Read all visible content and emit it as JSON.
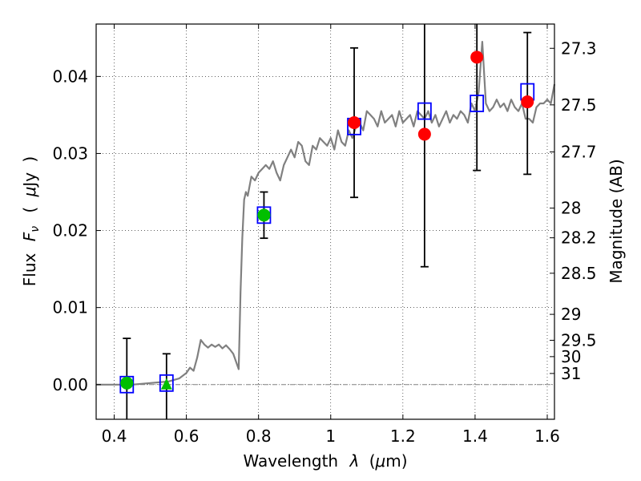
{
  "chart_data": {
    "type": "scatter",
    "xlabel_parts": [
      "Wavelength",
      "λ",
      "(",
      "μ",
      "m)"
    ],
    "ylabel_parts": [
      "Flux",
      "F",
      "ν",
      "(",
      "μ",
      "Jy",
      ")"
    ],
    "y2label": "Magnitude (AB)",
    "xlim": [
      0.35,
      1.62
    ],
    "ylim": [
      -0.0045,
      0.0468
    ],
    "xticks": [
      0.4,
      0.6,
      0.8,
      1.0,
      1.2,
      1.4,
      1.6
    ],
    "xtick_labels": [
      "0.4",
      "0.6",
      "0.8",
      "1",
      "1.2",
      "1.4",
      "1.6"
    ],
    "yticks": [
      0.0,
      0.01,
      0.02,
      0.03,
      0.04
    ],
    "ytick_labels": [
      "0.00",
      "0.01",
      "0.02",
      "0.03",
      "0.04"
    ],
    "magnitude_ticks": [
      {
        "mag": 27.3,
        "label": "27.3"
      },
      {
        "mag": 27.5,
        "label": "27.5"
      },
      {
        "mag": 27.7,
        "label": "27.7"
      },
      {
        "mag": 28,
        "label": "28"
      },
      {
        "mag": 28.2,
        "label": "28.2"
      },
      {
        "mag": 28.5,
        "label": "28.5"
      },
      {
        "mag": 29,
        "label": "29"
      },
      {
        "mag": 29.5,
        "label": "29.5"
      },
      {
        "mag": 30,
        "label": "30"
      },
      {
        "mag": 31,
        "label": "31"
      }
    ],
    "grid": true,
    "colors": {
      "spectrum": "#808080",
      "green": "#00bf00",
      "red": "#ff0000",
      "model_box": "#0000ff",
      "errorbar": "#000000",
      "zero_line": "#808080"
    },
    "series": [
      {
        "kind": "line",
        "x": [
          0.35,
          0.4,
          0.45,
          0.5,
          0.55,
          0.58,
          0.6,
          0.61,
          0.62,
          0.63,
          0.64,
          0.65,
          0.66,
          0.67,
          0.68,
          0.69,
          0.7,
          0.71,
          0.72,
          0.73,
          0.745,
          0.75,
          0.755,
          0.76,
          0.765,
          0.77,
          0.78,
          0.79,
          0.8,
          0.81,
          0.82,
          0.83,
          0.84,
          0.85,
          0.86,
          0.87,
          0.88,
          0.89,
          0.9,
          0.91,
          0.92,
          0.93,
          0.94,
          0.95,
          0.96,
          0.97,
          0.98,
          0.99,
          1.0,
          1.01,
          1.02,
          1.03,
          1.04,
          1.05,
          1.06,
          1.07,
          1.08,
          1.09,
          1.1,
          1.11,
          1.12,
          1.13,
          1.14,
          1.15,
          1.16,
          1.17,
          1.18,
          1.19,
          1.2,
          1.21,
          1.22,
          1.23,
          1.24,
          1.25,
          1.26,
          1.27,
          1.28,
          1.29,
          1.3,
          1.31,
          1.32,
          1.33,
          1.34,
          1.35,
          1.36,
          1.37,
          1.38,
          1.39,
          1.4,
          1.41,
          1.42,
          1.43,
          1.44,
          1.45,
          1.46,
          1.47,
          1.48,
          1.49,
          1.5,
          1.51,
          1.52,
          1.53,
          1.54,
          1.55,
          1.56,
          1.57,
          1.58,
          1.59,
          1.6,
          1.61,
          1.62
        ],
        "y": [
          0.0,
          0.0,
          0.0,
          0.0002,
          0.0004,
          0.0008,
          0.0015,
          0.0022,
          0.0018,
          0.0035,
          0.0058,
          0.0052,
          0.0048,
          0.0052,
          0.0049,
          0.0052,
          0.0047,
          0.0051,
          0.0046,
          0.004,
          0.002,
          0.012,
          0.019,
          0.024,
          0.025,
          0.0245,
          0.027,
          0.0265,
          0.0275,
          0.028,
          0.0285,
          0.028,
          0.029,
          0.0275,
          0.0265,
          0.0285,
          0.0295,
          0.0305,
          0.0295,
          0.0315,
          0.031,
          0.029,
          0.0285,
          0.031,
          0.0305,
          0.032,
          0.0315,
          0.031,
          0.032,
          0.0305,
          0.033,
          0.0315,
          0.031,
          0.033,
          0.032,
          0.0335,
          0.034,
          0.033,
          0.0355,
          0.035,
          0.0345,
          0.0335,
          0.0355,
          0.034,
          0.0345,
          0.035,
          0.0335,
          0.0355,
          0.034,
          0.0345,
          0.035,
          0.0335,
          0.0355,
          0.035,
          0.0345,
          0.0355,
          0.034,
          0.035,
          0.0335,
          0.0345,
          0.0355,
          0.034,
          0.035,
          0.0345,
          0.0355,
          0.035,
          0.034,
          0.0365,
          0.0355,
          0.038,
          0.0445,
          0.0365,
          0.0355,
          0.036,
          0.037,
          0.036,
          0.0365,
          0.0355,
          0.037,
          0.036,
          0.0355,
          0.0365,
          0.0345,
          0.0345,
          0.034,
          0.036,
          0.0365,
          0.0365,
          0.037,
          0.0365,
          0.039
        ]
      },
      {
        "kind": "errorbars",
        "points": [
          {
            "x": 0.435,
            "low": -0.0045,
            "high": 0.006
          },
          {
            "x": 0.545,
            "low": -0.0045,
            "high": 0.004
          },
          {
            "x": 0.815,
            "low": 0.019,
            "high": 0.025
          },
          {
            "x": 1.065,
            "low": 0.0243,
            "high": 0.0437
          },
          {
            "x": 1.26,
            "low": 0.0153,
            "high": 0.0468
          },
          {
            "x": 1.405,
            "low": 0.0278,
            "high": 0.0468
          },
          {
            "x": 1.545,
            "low": 0.0273,
            "high": 0.0457
          }
        ]
      },
      {
        "kind": "model_squares",
        "points": [
          {
            "x": 0.435,
            "y": 0.0
          },
          {
            "x": 0.545,
            "y": 0.0002
          },
          {
            "x": 0.815,
            "y": 0.022
          },
          {
            "x": 1.065,
            "y": 0.0335
          },
          {
            "x": 1.26,
            "y": 0.0355
          },
          {
            "x": 1.405,
            "y": 0.0365
          },
          {
            "x": 1.545,
            "y": 0.038
          }
        ]
      },
      {
        "kind": "green_circles",
        "points": [
          {
            "x": 0.435,
            "y": 0.0002
          },
          {
            "x": 0.815,
            "y": 0.022
          }
        ]
      },
      {
        "kind": "green_triangles",
        "points": [
          {
            "x": 0.545,
            "y": 0.0
          }
        ]
      },
      {
        "kind": "red_circles",
        "points": [
          {
            "x": 1.065,
            "y": 0.034
          },
          {
            "x": 1.26,
            "y": 0.0325
          },
          {
            "x": 1.405,
            "y": 0.0425
          },
          {
            "x": 1.545,
            "y": 0.0367
          }
        ]
      }
    ]
  }
}
